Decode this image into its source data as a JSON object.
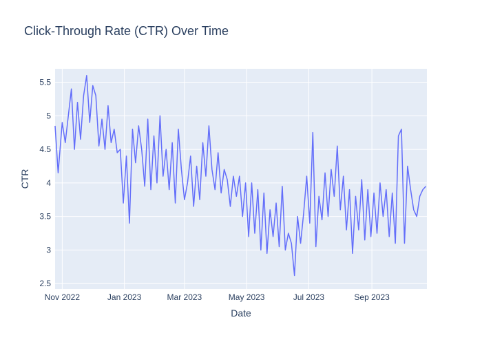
{
  "chart_data": {
    "type": "line",
    "title": "Click-Through Rate (CTR) Over Time",
    "xlabel": "Date",
    "ylabel": "CTR",
    "x_ticks": [
      {
        "date": "2022-11-01",
        "label": "Nov 2022"
      },
      {
        "date": "2023-01-01",
        "label": "Jan 2023"
      },
      {
        "date": "2023-03-01",
        "label": "Mar 2023"
      },
      {
        "date": "2023-05-01",
        "label": "May 2023"
      },
      {
        "date": "2023-07-01",
        "label": "Jul 2023"
      },
      {
        "date": "2023-09-01",
        "label": "Sep 2023"
      }
    ],
    "y_ticks": [
      {
        "value": 2.5,
        "label": "2.5"
      },
      {
        "value": 3,
        "label": "3"
      },
      {
        "value": 3.5,
        "label": "3.5"
      },
      {
        "value": 4,
        "label": "4"
      },
      {
        "value": 4.5,
        "label": "4.5"
      },
      {
        "value": 5,
        "label": "5"
      },
      {
        "value": 5.5,
        "label": "5.5"
      }
    ],
    "xlim": [
      "2022-10-25",
      "2023-10-25"
    ],
    "ylim": [
      2.42,
      5.7
    ],
    "grid": true,
    "colors": {
      "plot_bg": "#E5ECF6",
      "line": "#636EFA",
      "text": "#2a3f5f"
    },
    "series": [
      {
        "x": [
          "2022-10-25",
          "2022-10-28",
          "2022-11-01",
          "2022-11-04",
          "2022-11-07",
          "2022-11-10",
          "2022-11-13",
          "2022-11-16",
          "2022-11-19",
          "2022-11-22",
          "2022-11-25",
          "2022-11-28",
          "2022-12-01",
          "2022-12-04",
          "2022-12-07",
          "2022-12-10",
          "2022-12-13",
          "2022-12-16",
          "2022-12-19",
          "2022-12-22",
          "2022-12-25",
          "2022-12-28",
          "2022-12-31",
          "2023-01-03",
          "2023-01-06",
          "2023-01-09",
          "2023-01-12",
          "2023-01-15",
          "2023-01-18",
          "2023-01-21",
          "2023-01-24",
          "2023-01-27",
          "2023-01-30",
          "2023-02-02",
          "2023-02-05",
          "2023-02-08",
          "2023-02-11",
          "2023-02-14",
          "2023-02-17",
          "2023-02-20",
          "2023-02-23",
          "2023-02-26",
          "2023-03-01",
          "2023-03-04",
          "2023-03-07",
          "2023-03-10",
          "2023-03-13",
          "2023-03-16",
          "2023-03-19",
          "2023-03-22",
          "2023-03-25",
          "2023-03-28",
          "2023-03-31",
          "2023-04-03",
          "2023-04-06",
          "2023-04-09",
          "2023-04-12",
          "2023-04-15",
          "2023-04-18",
          "2023-04-21",
          "2023-04-24",
          "2023-04-27",
          "2023-04-30",
          "2023-05-03",
          "2023-05-06",
          "2023-05-09",
          "2023-05-12",
          "2023-05-15",
          "2023-05-18",
          "2023-05-21",
          "2023-05-24",
          "2023-05-27",
          "2023-05-30",
          "2023-06-02",
          "2023-06-05",
          "2023-06-08",
          "2023-06-11",
          "2023-06-14",
          "2023-06-17",
          "2023-06-20",
          "2023-06-23",
          "2023-06-26",
          "2023-06-29",
          "2023-07-02",
          "2023-07-05",
          "2023-07-08",
          "2023-07-11",
          "2023-07-14",
          "2023-07-17",
          "2023-07-20",
          "2023-07-23",
          "2023-07-26",
          "2023-07-29",
          "2023-08-01",
          "2023-08-04",
          "2023-08-07",
          "2023-08-10",
          "2023-08-13",
          "2023-08-16",
          "2023-08-19",
          "2023-08-22",
          "2023-08-25",
          "2023-08-28",
          "2023-08-31",
          "2023-09-03",
          "2023-09-06",
          "2023-09-09",
          "2023-09-12",
          "2023-09-15",
          "2023-09-18",
          "2023-09-21",
          "2023-09-24",
          "2023-09-27",
          "2023-09-30",
          "2023-10-03",
          "2023-10-06",
          "2023-10-09",
          "2023-10-12",
          "2023-10-15",
          "2023-10-18",
          "2023-10-21",
          "2023-10-24"
        ],
        "values": [
          4.85,
          4.15,
          4.9,
          4.6,
          5.0,
          5.4,
          4.5,
          5.2,
          4.65,
          5.3,
          5.6,
          4.9,
          5.45,
          5.3,
          4.55,
          4.95,
          4.5,
          5.15,
          4.6,
          4.8,
          4.45,
          4.5,
          3.7,
          4.4,
          3.4,
          4.8,
          4.3,
          4.85,
          4.5,
          3.95,
          4.95,
          3.9,
          4.7,
          4.0,
          5.0,
          4.1,
          4.5,
          3.9,
          4.6,
          3.7,
          4.8,
          4.2,
          3.75,
          4.0,
          4.4,
          3.65,
          4.25,
          3.75,
          4.6,
          4.1,
          4.85,
          4.2,
          3.9,
          4.45,
          3.85,
          4.2,
          4.05,
          3.65,
          4.1,
          3.8,
          4.1,
          3.5,
          4.0,
          3.2,
          4.0,
          3.25,
          3.9,
          3.0,
          3.85,
          2.95,
          3.6,
          3.2,
          3.7,
          3.05,
          3.95,
          3.0,
          3.25,
          3.1,
          2.62,
          3.5,
          3.1,
          3.55,
          4.1,
          3.4,
          4.75,
          3.05,
          3.8,
          3.45,
          4.15,
          3.5,
          4.2,
          3.8,
          4.55,
          3.6,
          4.1,
          3.3,
          3.9,
          2.95,
          3.8,
          3.3,
          4.05,
          3.15,
          3.9,
          3.2,
          3.85,
          3.25,
          4.0,
          3.5,
          3.9,
          3.2,
          3.85,
          3.1,
          4.7,
          4.8,
          3.1,
          4.25,
          3.9,
          3.6,
          3.5,
          3.8,
          3.9,
          3.95
        ]
      }
    ]
  }
}
